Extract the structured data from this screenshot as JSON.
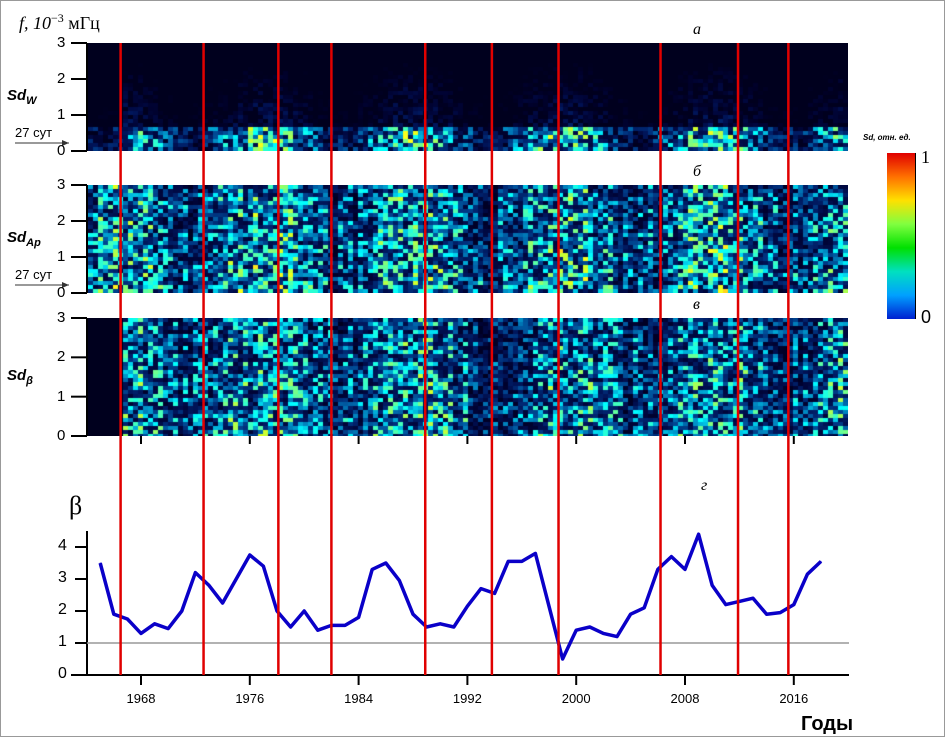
{
  "figure": {
    "y_axis_title_top": "f, 10",
    "y_axis_exp": "−3",
    "y_axis_unit": "мГц",
    "panels": [
      {
        "letter": "а",
        "label": "Sd",
        "sub": "W",
        "marker": "27 сут",
        "ticks": [
          "3",
          "2",
          "1",
          "0"
        ],
        "activity": 0.45
      },
      {
        "letter": "б",
        "label": "Sd",
        "sub": "Ap",
        "marker": "27 сут",
        "ticks": [
          "3",
          "2",
          "1",
          "0"
        ],
        "activity": 0.75
      },
      {
        "letter": "в",
        "label": "Sd",
        "sub": "β",
        "marker": "",
        "ticks": [
          "3",
          "2",
          "1",
          "0"
        ],
        "activity": 0.7
      }
    ],
    "colorbar": {
      "title": "Sd, отн. ед.",
      "max_label": "1",
      "min_label": "0"
    },
    "colors": {
      "red_line": "#e00000",
      "series": "#0a00c8",
      "ref_line": "#999999"
    }
  },
  "chart_data": {
    "type": "line",
    "panel_letter": "г",
    "ylabel": "β",
    "xlabel": "Годы",
    "xlim": [
      1963.6,
      2019.3
    ],
    "ylim": [
      0,
      4.5
    ],
    "yticks": [
      "0",
      "1",
      "2",
      "3",
      "4"
    ],
    "xticks": [
      "1968",
      "1976",
      "1984",
      "1992",
      "2000",
      "2008",
      "2016"
    ],
    "reference_line": 1,
    "series": [
      {
        "name": "β",
        "x": [
          1965,
          1966,
          1967,
          1968,
          1969,
          1970,
          1971,
          1972,
          1973,
          1974,
          1975,
          1976,
          1977,
          1978,
          1979,
          1980,
          1981,
          1982,
          1983,
          1984,
          1985,
          1986,
          1987,
          1988,
          1989,
          1990,
          1991,
          1992,
          1993,
          1994,
          1995,
          1996,
          1997,
          1999,
          2000,
          2001,
          2002,
          2003,
          2004,
          2005,
          2006,
          2007,
          2008,
          2009,
          2010,
          2011,
          2012,
          2013,
          2014,
          2015,
          2016,
          2017,
          2018
        ],
        "values": [
          3.5,
          1.9,
          1.75,
          1.3,
          1.6,
          1.45,
          2.0,
          3.2,
          2.8,
          2.25,
          3.0,
          3.75,
          3.4,
          2.0,
          1.5,
          2.0,
          1.4,
          1.55,
          1.55,
          1.8,
          3.3,
          3.5,
          2.95,
          1.9,
          1.5,
          1.6,
          1.5,
          2.15,
          2.7,
          2.55,
          3.55,
          3.55,
          3.8,
          0.5,
          1.4,
          1.5,
          1.3,
          1.2,
          1.9,
          2.1,
          3.3,
          3.7,
          3.3,
          4.4,
          2.8,
          2.2,
          2.3,
          2.4,
          1.9,
          1.95,
          2.2,
          3.15,
          3.55
        ]
      }
    ],
    "vertical_markers_years": [
      1966.5,
      1972.6,
      1978.1,
      1982.0,
      1988.9,
      1993.8,
      1998.7,
      2006.2,
      2011.9,
      2015.6
    ]
  }
}
